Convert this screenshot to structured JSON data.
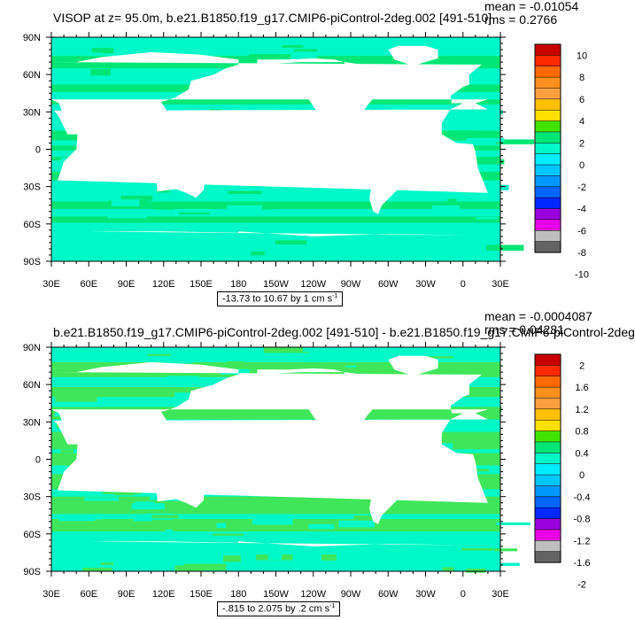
{
  "palette": [
    "#646464",
    "#bebebe",
    "#e800e8",
    "#9a00dc",
    "#0028ff",
    "#0064ff",
    "#0098ff",
    "#00c6ff",
    "#00ecff",
    "#00f8c8",
    "#00e676",
    "#40e400",
    "#ffe000",
    "#ffc000",
    "#ffa040",
    "#ff9020",
    "#ff6a00",
    "#ff2a00",
    "#c80000"
  ],
  "panels": [
    {
      "title": "VISOP at z=  95.0m, b.e21.B1850.f19_g17.CMIP6-piControl-2deg.002 [491-510]",
      "stats_mean": "mean = -0.01054",
      "stats_rms": "rms = 0.2766",
      "range_text": "-13.73 to 10.67 by 1 cm s",
      "range_unit_sup": "-1",
      "ocean_color": "#00f8c8",
      "feature_color": "#00e676",
      "chart_data": {
        "type": "heatmap",
        "title": "VISOP at z=  95.0m, b.e21.B1850.f19_g17.CMIP6-piControl-2deg.002 [491-510]",
        "x_ticks": [
          "30E",
          "60E",
          "90E",
          "120E",
          "150E",
          "180",
          "150W",
          "120W",
          "90W",
          "60W",
          "30W",
          "0",
          "30E"
        ],
        "y_ticks": [
          "90N",
          "60N",
          "30N",
          "0",
          "30S",
          "60S",
          "90S"
        ],
        "colorbar_levels": [
          "10",
          "8",
          "6",
          "4",
          "2",
          "0",
          "-2",
          "-4",
          "-6",
          "-8",
          "-10"
        ],
        "min": -13.73,
        "max": 10.67,
        "interval": 1,
        "units": "cm s-1"
      }
    },
    {
      "title": "b.e21.B1850.f19_g17.CMIP6-piControl-2deg.002 [491-510] - b.e21.B1850.f19_g17.CMIP6-piControl-2deg",
      "stats_mean": "mean = -0.0004087",
      "stats_rms": "rms = 0.04281",
      "range_text": "-.815 to 2.075 by .2 cm s",
      "range_unit_sup": "-1",
      "ocean_color": "#00f8c8",
      "feature_color": "#40e65a",
      "chart_data": {
        "type": "heatmap",
        "title": "b.e21.B1850.f19_g17.CMIP6-piControl-2deg.002 [491-510] - b.e21.B1850.f19_g17.CMIP6-piControl-2deg",
        "x_ticks": [
          "30E",
          "60E",
          "90E",
          "120E",
          "150E",
          "180",
          "150W",
          "120W",
          "90W",
          "60W",
          "30W",
          "0",
          "30E"
        ],
        "y_ticks": [
          "90N",
          "60N",
          "30N",
          "0",
          "30S",
          "60S",
          "90S"
        ],
        "colorbar_levels": [
          "2",
          "1.6",
          "1.2",
          "0.8",
          "0.4",
          "0",
          "-0.4",
          "-0.8",
          "-1.2",
          "-1.6",
          "-2"
        ],
        "min": -0.815,
        "max": 2.075,
        "interval": 0.2,
        "units": "cm s-1"
      }
    }
  ]
}
